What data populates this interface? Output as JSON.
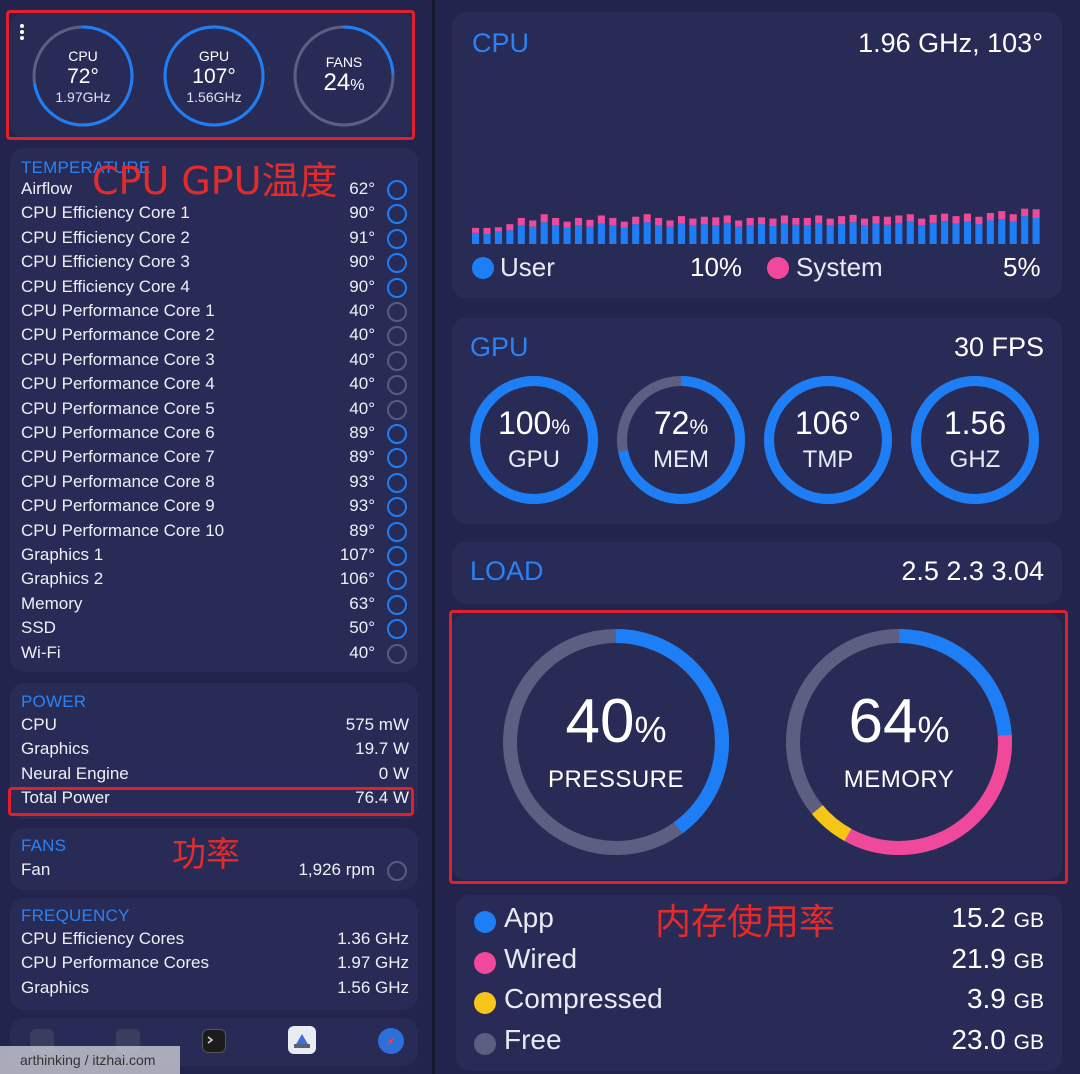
{
  "colors": {
    "accent_blue": "#1d7ef6",
    "pink": "#f0489a",
    "yellow": "#f5c518",
    "gray": "#5c5f82",
    "annotation_red": "#e0202c"
  },
  "top_gauges": [
    {
      "name": "CPU",
      "value": "72°",
      "sub": "1.97GHz",
      "level": 0.72
    },
    {
      "name": "GPU",
      "value": "107°",
      "sub": "1.56GHz",
      "level": 1.0
    },
    {
      "name": "FANS",
      "value": "24",
      "unit": "%",
      "sub": "",
      "level": 0.24
    }
  ],
  "annotations": {
    "temp": "CPU GPU温度",
    "power": "功率",
    "memory": "内存使用率"
  },
  "temperature": {
    "title": "TEMPERATURE",
    "items": [
      {
        "label": "Airflow",
        "value": "62°"
      },
      {
        "label": "CPU Efficiency Core 1",
        "value": "90°"
      },
      {
        "label": "CPU Efficiency Core 2",
        "value": "91°"
      },
      {
        "label": "CPU Efficiency Core 3",
        "value": "90°"
      },
      {
        "label": "CPU Efficiency Core 4",
        "value": "90°"
      },
      {
        "label": "CPU Performance Core 1",
        "value": "40°"
      },
      {
        "label": "CPU Performance Core 2",
        "value": "40°"
      },
      {
        "label": "CPU Performance Core 3",
        "value": "40°"
      },
      {
        "label": "CPU Performance Core 4",
        "value": "40°"
      },
      {
        "label": "CPU Performance Core 5",
        "value": "40°"
      },
      {
        "label": "CPU Performance Core 6",
        "value": "89°"
      },
      {
        "label": "CPU Performance Core 7",
        "value": "89°"
      },
      {
        "label": "CPU Performance Core 8",
        "value": "93°"
      },
      {
        "label": "CPU Performance Core 9",
        "value": "93°"
      },
      {
        "label": "CPU Performance Core 10",
        "value": "89°"
      },
      {
        "label": "Graphics 1",
        "value": "107°"
      },
      {
        "label": "Graphics 2",
        "value": "106°"
      },
      {
        "label": "Memory",
        "value": "63°"
      },
      {
        "label": "SSD",
        "value": "50°"
      },
      {
        "label": "Wi-Fi",
        "value": "40°"
      }
    ]
  },
  "power": {
    "title": "POWER",
    "items": [
      {
        "label": "CPU",
        "value": "575 mW"
      },
      {
        "label": "Graphics",
        "value": "19.7 W"
      },
      {
        "label": "Neural Engine",
        "value": "0 W"
      },
      {
        "label": "Total Power",
        "value": "76.4 W"
      }
    ]
  },
  "fans": {
    "title": "FANS",
    "items": [
      {
        "label": "Fan",
        "value": "1,926 rpm"
      }
    ]
  },
  "frequency": {
    "title": "FREQUENCY",
    "items": [
      {
        "label": "CPU Efficiency Cores",
        "value": "1.36 GHz"
      },
      {
        "label": "CPU Performance Cores",
        "value": "1.97 GHz"
      },
      {
        "label": "Graphics",
        "value": "1.56 GHz"
      }
    ]
  },
  "watermark": "arthinking / itzhai.com",
  "cpu_card": {
    "title": "CPU",
    "value": "1.96 GHz, 103°",
    "user_label": "User",
    "user_value": "10%",
    "system_label": "System",
    "system_value": "5%"
  },
  "chart_data": {
    "type": "bar",
    "series": [
      {
        "values": [
          0.18,
          0.16,
          0.2,
          0.22,
          0.3,
          0.28,
          0.35,
          0.3,
          0.26,
          0.3,
          0.28,
          0.33,
          0.3,
          0.26,
          0.32,
          0.35,
          0.3,
          0.28,
          0.33,
          0.3,
          0.32,
          0.3,
          0.34,
          0.28,
          0.3,
          0.32,
          0.29,
          0.33,
          0.31,
          0.3,
          0.34,
          0.3,
          0.32,
          0.35,
          0.3,
          0.33,
          0.31,
          0.34,
          0.36,
          0.3,
          0.34,
          0.37,
          0.33,
          0.36,
          0.32,
          0.38,
          0.4,
          0.36,
          0.45,
          0.42
        ]
      },
      {
        "values": [
          0.08,
          0.1,
          0.07,
          0.1,
          0.12,
          0.1,
          0.13,
          0.12,
          0.1,
          0.12,
          0.11,
          0.13,
          0.12,
          0.1,
          0.12,
          0.13,
          0.12,
          0.1,
          0.12,
          0.11,
          0.12,
          0.13,
          0.12,
          0.1,
          0.12,
          0.11,
          0.12,
          0.13,
          0.11,
          0.12,
          0.12,
          0.11,
          0.13,
          0.12,
          0.11,
          0.12,
          0.13,
          0.12,
          0.12,
          0.11,
          0.13,
          0.12,
          0.12,
          0.13,
          0.12,
          0.12,
          0.13,
          0.12,
          0.12,
          0.14
        ]
      }
    ]
  },
  "gpu_card": {
    "title": "GPU",
    "fps": "30 FPS",
    "gauges": [
      {
        "value": "100",
        "unit": "%",
        "caption": "GPU",
        "level": 1.0
      },
      {
        "value": "72",
        "unit": "%",
        "caption": "MEM",
        "level": 0.72
      },
      {
        "value": "106°",
        "unit": "",
        "caption": "TMP",
        "level": 1.0
      },
      {
        "value": "1.56",
        "unit": "",
        "caption": "GHZ",
        "level": 1.0
      }
    ]
  },
  "load_card": {
    "title": "LOAD",
    "value": "2.5 2.3 3.04"
  },
  "pressure": {
    "value": "40",
    "unit": "%",
    "caption": "PRESSURE",
    "level": 0.4
  },
  "memory_gauge": {
    "value": "64",
    "unit": "%",
    "caption": "MEMORY",
    "app": 0.24,
    "wired": 0.34,
    "compressed": 0.06
  },
  "memory_breakdown": [
    {
      "name": "App",
      "amount": "15.2",
      "unit": "GB",
      "color": "#1d7ef6"
    },
    {
      "name": "Wired",
      "amount": "21.9",
      "unit": "GB",
      "color": "#f0489a"
    },
    {
      "name": "Compressed",
      "amount": "3.9",
      "unit": "GB",
      "color": "#f5c518"
    },
    {
      "name": "Free",
      "amount": "23.0",
      "unit": "GB",
      "color": "#5c5f82"
    }
  ]
}
